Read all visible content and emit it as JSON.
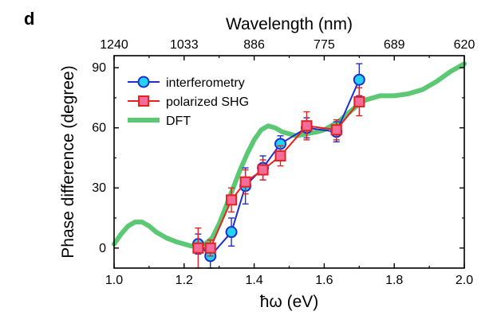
{
  "panel_label": "d",
  "chart_data": {
    "type": "line",
    "title": "",
    "xlabel": "ħω (eV)",
    "ylabel": "Phase difference (degree)",
    "top_xlabel": "Wavelength (nm)",
    "xlim": [
      1.0,
      2.0
    ],
    "ylim": [
      -10,
      96
    ],
    "x_ticks": [
      1.0,
      1.2,
      1.4,
      1.6,
      1.8,
      2.0
    ],
    "x_tick_labels": [
      "1.0",
      "1.2",
      "1.4",
      "1.6",
      "1.8",
      "2.0"
    ],
    "y_ticks": [
      0,
      30,
      60,
      90
    ],
    "y_tick_labels": [
      "0",
      "30",
      "60",
      "90"
    ],
    "top_x_ticks": [
      1.0,
      1.2,
      1.4,
      1.6,
      1.8,
      2.0
    ],
    "top_tick_labels": [
      "1240",
      "1033",
      "886",
      "775",
      "689",
      "620"
    ],
    "grid": false,
    "legend_position": "top-left",
    "colors": {
      "interferometry_line": "#1f2fcf",
      "interferometry_fill": "#22d3f0",
      "shg_line": "#e8201f",
      "shg_fill": "#f36d9a",
      "dft": "#5cc873"
    },
    "series": [
      {
        "name": "interferometry",
        "kind": "line-marker",
        "marker": "circle",
        "x": [
          1.24,
          1.275,
          1.335,
          1.375,
          1.425,
          1.475,
          1.55,
          1.635,
          1.7
        ],
        "y": [
          2,
          -4,
          8,
          31,
          40,
          52,
          60,
          58,
          84
        ],
        "err": [
          5,
          6,
          7,
          9,
          6,
          4,
          5,
          5,
          8
        ]
      },
      {
        "name": "polarized SHG",
        "kind": "line-marker",
        "marker": "square",
        "x": [
          1.24,
          1.275,
          1.335,
          1.375,
          1.425,
          1.475,
          1.55,
          1.635,
          1.7
        ],
        "y": [
          0,
          0,
          24,
          33,
          39,
          46,
          61,
          59,
          73
        ],
        "err": [
          10,
          4,
          6,
          6,
          5,
          5,
          7,
          5,
          7
        ]
      },
      {
        "name": "DFT",
        "kind": "line",
        "x": [
          1.0,
          1.02,
          1.04,
          1.06,
          1.08,
          1.1,
          1.12,
          1.15,
          1.18,
          1.2,
          1.22,
          1.24,
          1.26,
          1.28,
          1.3,
          1.32,
          1.34,
          1.36,
          1.38,
          1.4,
          1.42,
          1.44,
          1.46,
          1.48,
          1.5,
          1.52,
          1.55,
          1.58,
          1.6,
          1.62,
          1.64,
          1.66,
          1.68,
          1.7,
          1.72,
          1.74,
          1.76,
          1.78,
          1.8,
          1.84,
          1.88,
          1.92,
          1.96,
          2.0
        ],
        "y": [
          2,
          7,
          11,
          13,
          13,
          11,
          8,
          5,
          3,
          2,
          1,
          1,
          2,
          5,
          12,
          21,
          30,
          39,
          47,
          54,
          59,
          61,
          60,
          58,
          57,
          56,
          57,
          58,
          59,
          61,
          63,
          66,
          69,
          72,
          74,
          75,
          76,
          76,
          76,
          77,
          79,
          83,
          88,
          92
        ]
      }
    ]
  }
}
